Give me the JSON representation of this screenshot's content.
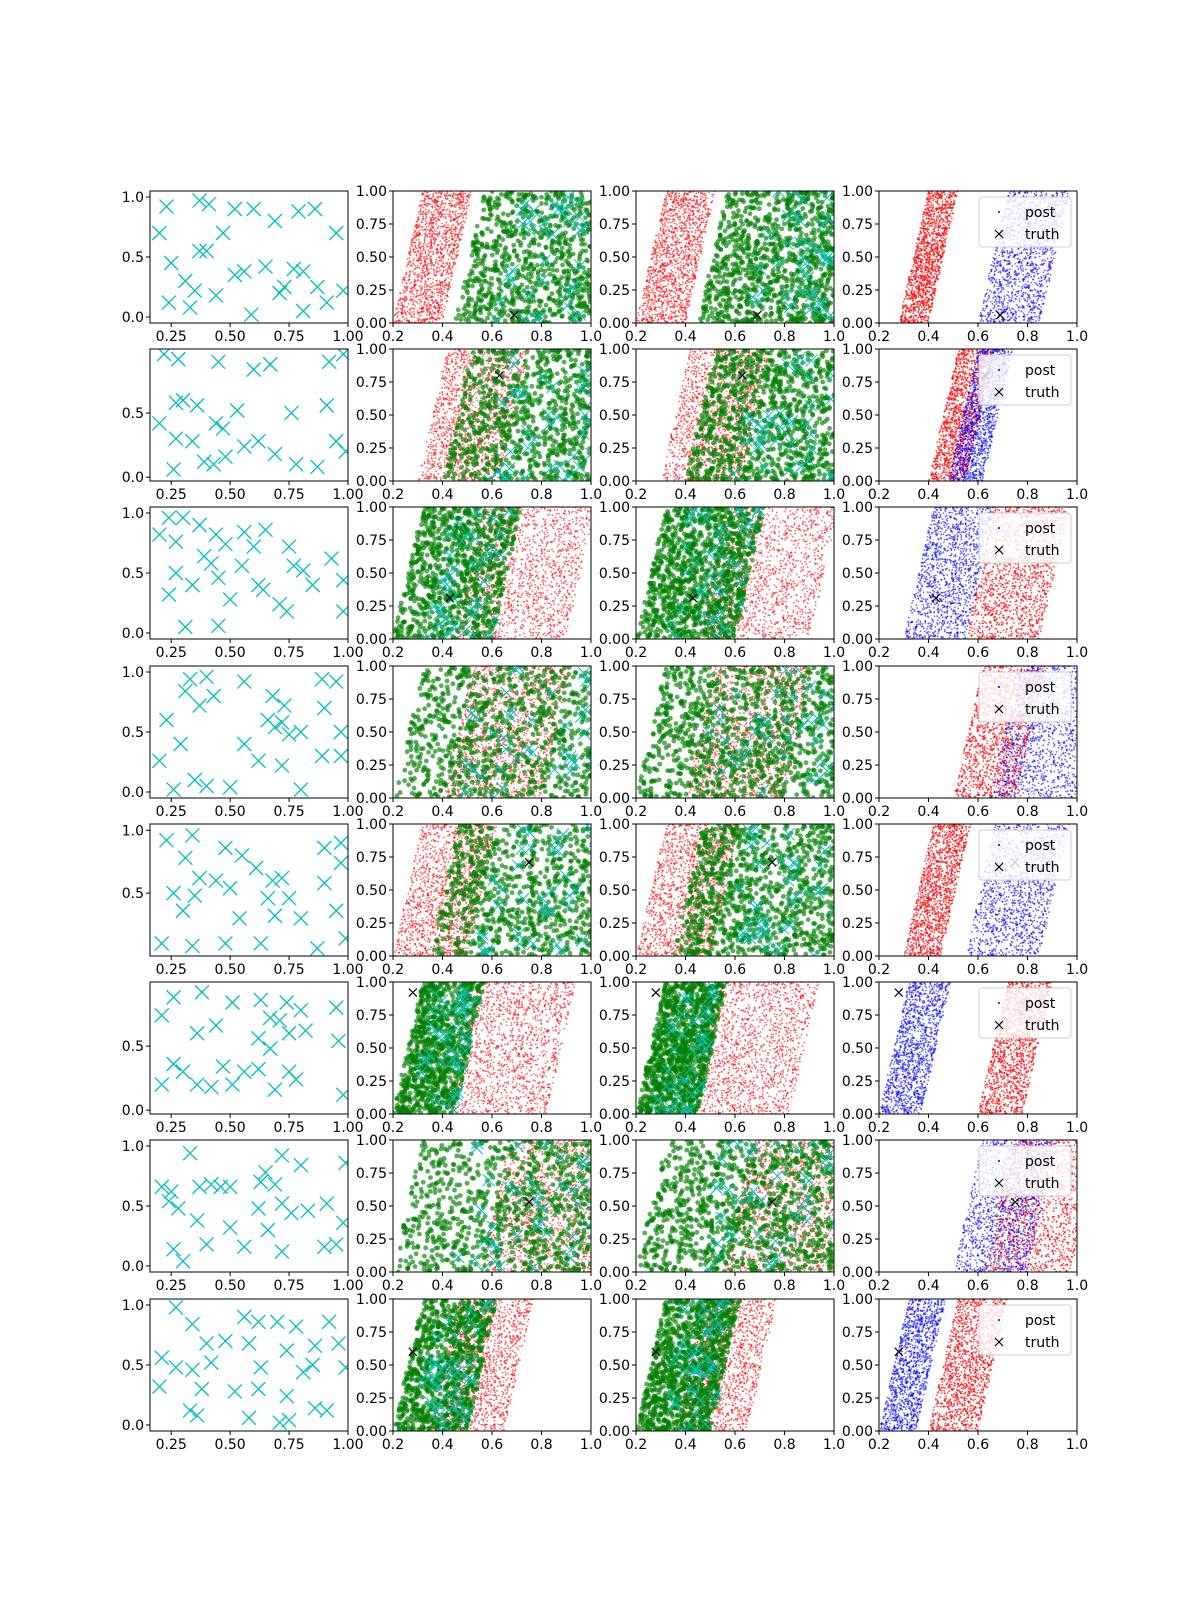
{
  "figure": {
    "title": ""
  },
  "colors": {
    "uniform_marker": "#00bfbf",
    "truth_marker": "#000000",
    "prior_cloud": "#ff0000",
    "green_samples": "#008000",
    "post_samples": "#0000ff",
    "axes": "#000000"
  },
  "legend": {
    "post_label": "post",
    "truth_label": "truth"
  },
  "chart_data": {
    "type": "scatter",
    "layout": "8 rows x 4 columns grid of scatter panels",
    "column_kinds": [
      "cyan-x-scatter",
      "red-and-green-clouds-with-cyan-x",
      "red-and-green-clouds-with-cyan-x",
      "red-and-blue-clouds-with-legend"
    ],
    "column_x_ticks": [
      [
        "0.25",
        "0.50",
        "0.75",
        "1.00"
      ],
      [
        "0.2",
        "0.4",
        "0.6",
        "0.8",
        "1.0"
      ],
      [
        "0.2",
        "0.4",
        "0.6",
        "0.8",
        "1.0"
      ],
      [
        "0.2",
        "0.4",
        "0.6",
        "0.8",
        "1.0"
      ]
    ],
    "column_x_ranges": [
      [
        0.16,
        1.0
      ],
      [
        0.2,
        1.0
      ],
      [
        0.2,
        1.0
      ],
      [
        0.2,
        1.0
      ]
    ],
    "column_y_ticks_other": [
      "0.00",
      "0.25",
      "0.50",
      "0.75",
      "1.00"
    ],
    "rows": [
      {
        "y_ticks_col1": [
          "0.0",
          "0.5",
          "1.0"
        ],
        "col1_yrange": [
          -0.05,
          1.05
        ],
        "truth": [
          0.69,
          0.06
        ],
        "green_band": [
          0.45,
          1.0
        ],
        "red_band": [
          0.2,
          0.4
        ],
        "blue_band": [
          0.6,
          0.85
        ],
        "red_band_col4": [
          0.28,
          0.4
        ],
        "cyan_x": [
          [
            0.23,
            0.92
          ],
          [
            0.37,
            0.97
          ],
          [
            0.41,
            0.94
          ],
          [
            0.52,
            0.9
          ],
          [
            0.6,
            0.9
          ],
          [
            0.79,
            0.88
          ],
          [
            0.86,
            0.9
          ],
          [
            0.2,
            0.7
          ],
          [
            0.47,
            0.7
          ],
          [
            0.69,
            0.8
          ],
          [
            0.95,
            0.7
          ],
          [
            0.4,
            0.55
          ],
          [
            0.37,
            0.55
          ],
          [
            0.65,
            0.42
          ],
          [
            0.77,
            0.4
          ],
          [
            0.81,
            0.38
          ],
          [
            0.25,
            0.45
          ],
          [
            0.52,
            0.35
          ],
          [
            0.56,
            0.38
          ],
          [
            0.31,
            0.3
          ],
          [
            0.35,
            0.22
          ],
          [
            0.44,
            0.18
          ],
          [
            0.71,
            0.2
          ],
          [
            0.73,
            0.25
          ],
          [
            0.87,
            0.25
          ],
          [
            0.24,
            0.12
          ],
          [
            0.33,
            0.08
          ],
          [
            0.59,
            0.02
          ],
          [
            0.81,
            0.05
          ],
          [
            0.91,
            0.12
          ],
          [
            0.98,
            0.22
          ]
        ]
      },
      {
        "y_ticks_col1": [
          "0.0",
          "0.5"
        ],
        "col1_yrange": [
          -0.03,
          1.0
        ],
        "truth": [
          0.63,
          0.8
        ],
        "green_band": [
          0.4,
          1.0
        ],
        "red_band": [
          0.3,
          0.63
        ],
        "blue_band": [
          0.48,
          0.62
        ],
        "red_band_col4": [
          0.4,
          0.55
        ],
        "cyan_x": [
          [
            0.22,
            0.96
          ],
          [
            0.28,
            0.92
          ],
          [
            0.45,
            0.9
          ],
          [
            0.6,
            0.84
          ],
          [
            0.67,
            0.88
          ],
          [
            0.92,
            0.9
          ],
          [
            0.98,
            0.96
          ],
          [
            0.3,
            0.6
          ],
          [
            0.36,
            0.56
          ],
          [
            0.27,
            0.58
          ],
          [
            0.53,
            0.52
          ],
          [
            0.76,
            0.5
          ],
          [
            0.91,
            0.56
          ],
          [
            0.2,
            0.42
          ],
          [
            0.44,
            0.42
          ],
          [
            0.47,
            0.38
          ],
          [
            0.56,
            0.24
          ],
          [
            0.62,
            0.28
          ],
          [
            0.34,
            0.28
          ],
          [
            0.27,
            0.3
          ],
          [
            0.48,
            0.16
          ],
          [
            0.39,
            0.12
          ],
          [
            0.43,
            0.1
          ],
          [
            0.69,
            0.18
          ],
          [
            0.78,
            0.1
          ],
          [
            0.95,
            0.28
          ],
          [
            0.99,
            0.2
          ],
          [
            0.87,
            0.08
          ],
          [
            0.26,
            0.06
          ]
        ]
      },
      {
        "y_ticks_col1": [
          "0.0",
          "0.5",
          "1.0"
        ],
        "col1_yrange": [
          -0.05,
          1.05
        ],
        "truth": [
          0.43,
          0.31
        ],
        "green_band": [
          0.2,
          0.6
        ],
        "red_band": [
          0.45,
          0.9
        ],
        "blue_band": [
          0.3,
          0.55
        ],
        "red_band_col4": [
          0.55,
          0.85
        ],
        "cyan_x": [
          [
            0.24,
            0.96
          ],
          [
            0.3,
            0.96
          ],
          [
            0.37,
            0.9
          ],
          [
            0.44,
            0.82
          ],
          [
            0.56,
            0.84
          ],
          [
            0.65,
            0.86
          ],
          [
            0.2,
            0.82
          ],
          [
            0.27,
            0.76
          ],
          [
            0.48,
            0.74
          ],
          [
            0.6,
            0.72
          ],
          [
            0.75,
            0.72
          ],
          [
            0.93,
            0.62
          ],
          [
            0.39,
            0.64
          ],
          [
            0.42,
            0.58
          ],
          [
            0.55,
            0.56
          ],
          [
            0.77,
            0.56
          ],
          [
            0.81,
            0.52
          ],
          [
            0.27,
            0.5
          ],
          [
            0.34,
            0.4
          ],
          [
            0.45,
            0.46
          ],
          [
            0.62,
            0.4
          ],
          [
            0.64,
            0.36
          ],
          [
            0.85,
            0.4
          ],
          [
            0.98,
            0.44
          ],
          [
            0.24,
            0.32
          ],
          [
            0.5,
            0.28
          ],
          [
            0.71,
            0.24
          ],
          [
            0.74,
            0.18
          ],
          [
            0.98,
            0.18
          ],
          [
            0.31,
            0.05
          ],
          [
            0.45,
            0.06
          ]
        ]
      },
      {
        "y_ticks_col1": [
          "0.0",
          "0.5",
          "1.0"
        ],
        "col1_yrange": [
          -0.05,
          1.05
        ],
        "truth": null,
        "green_band": [
          0.2,
          1.0
        ],
        "red_band": [
          0.4,
          0.8
        ],
        "blue_band": [
          0.65,
          1.0
        ],
        "red_band_col4": [
          0.5,
          0.75
        ],
        "cyan_x": [
          [
            0.33,
            0.94
          ],
          [
            0.4,
            0.96
          ],
          [
            0.56,
            0.92
          ],
          [
            0.89,
            0.94
          ],
          [
            0.95,
            0.92
          ],
          [
            0.31,
            0.84
          ],
          [
            0.43,
            0.8
          ],
          [
            0.37,
            0.72
          ],
          [
            0.68,
            0.8
          ],
          [
            0.73,
            0.72
          ],
          [
            0.9,
            0.7
          ],
          [
            0.23,
            0.6
          ],
          [
            0.72,
            0.58
          ],
          [
            0.75,
            0.48
          ],
          [
            0.8,
            0.5
          ],
          [
            0.66,
            0.6
          ],
          [
            0.69,
            0.54
          ],
          [
            0.29,
            0.4
          ],
          [
            0.56,
            0.4
          ],
          [
            0.97,
            0.5
          ],
          [
            0.89,
            0.3
          ],
          [
            0.97,
            0.3
          ],
          [
            0.2,
            0.26
          ],
          [
            0.62,
            0.26
          ],
          [
            0.72,
            0.22
          ],
          [
            0.35,
            0.1
          ],
          [
            0.4,
            0.05
          ],
          [
            0.26,
            0.02
          ],
          [
            0.5,
            0.04
          ],
          [
            0.8,
            0.02
          ]
        ]
      },
      {
        "y_ticks_col1": [
          "0.5",
          "1.0"
        ],
        "col1_yrange": [
          0.0,
          1.05
        ],
        "truth": [
          0.75,
          0.71
        ],
        "green_band": [
          0.35,
          1.0
        ],
        "red_band": [
          0.2,
          0.5
        ],
        "blue_band": [
          0.55,
          0.85
        ],
        "red_band_col4": [
          0.3,
          0.45
        ],
        "cyan_x": [
          [
            0.23,
            0.92
          ],
          [
            0.34,
            0.96
          ],
          [
            0.48,
            0.86
          ],
          [
            0.9,
            0.86
          ],
          [
            0.97,
            0.9
          ],
          [
            0.31,
            0.78
          ],
          [
            0.55,
            0.8
          ],
          [
            0.61,
            0.7
          ],
          [
            0.97,
            0.74
          ],
          [
            0.37,
            0.62
          ],
          [
            0.44,
            0.6
          ],
          [
            0.68,
            0.6
          ],
          [
            0.72,
            0.62
          ],
          [
            0.9,
            0.58
          ],
          [
            0.26,
            0.5
          ],
          [
            0.35,
            0.48
          ],
          [
            0.5,
            0.54
          ],
          [
            0.66,
            0.46
          ],
          [
            0.75,
            0.46
          ],
          [
            0.3,
            0.36
          ],
          [
            0.54,
            0.3
          ],
          [
            0.69,
            0.32
          ],
          [
            0.8,
            0.3
          ],
          [
            0.95,
            0.36
          ],
          [
            0.21,
            0.1
          ],
          [
            0.34,
            0.08
          ],
          [
            0.48,
            0.1
          ],
          [
            0.63,
            0.1
          ],
          [
            0.87,
            0.06
          ],
          [
            0.99,
            0.14
          ]
        ]
      },
      {
        "y_ticks_col1": [
          "0.0",
          "0.5"
        ],
        "col1_yrange": [
          -0.03,
          1.0
        ],
        "truth": [
          0.28,
          0.92
        ],
        "green_band": [
          0.2,
          0.45
        ],
        "red_band": [
          0.42,
          0.82
        ],
        "blue_band": [
          0.2,
          0.37
        ],
        "red_band_col4": [
          0.6,
          0.78
        ],
        "cyan_x": [
          [
            0.26,
            0.88
          ],
          [
            0.38,
            0.92
          ],
          [
            0.51,
            0.84
          ],
          [
            0.63,
            0.86
          ],
          [
            0.74,
            0.84
          ],
          [
            0.8,
            0.78
          ],
          [
            0.95,
            0.8
          ],
          [
            0.21,
            0.74
          ],
          [
            0.67,
            0.72
          ],
          [
            0.71,
            0.7
          ],
          [
            0.75,
            0.6
          ],
          [
            0.82,
            0.62
          ],
          [
            0.36,
            0.6
          ],
          [
            0.44,
            0.66
          ],
          [
            0.62,
            0.56
          ],
          [
            0.67,
            0.48
          ],
          [
            0.96,
            0.54
          ],
          [
            0.26,
            0.36
          ],
          [
            0.3,
            0.3
          ],
          [
            0.47,
            0.34
          ],
          [
            0.56,
            0.3
          ],
          [
            0.62,
            0.32
          ],
          [
            0.75,
            0.3
          ],
          [
            0.78,
            0.24
          ],
          [
            0.21,
            0.2
          ],
          [
            0.36,
            0.2
          ],
          [
            0.42,
            0.18
          ],
          [
            0.51,
            0.2
          ],
          [
            0.69,
            0.16
          ],
          [
            0.98,
            0.12
          ]
        ]
      },
      {
        "y_ticks_col1": [
          "0.0",
          "0.5",
          "1.0"
        ],
        "col1_yrange": [
          -0.05,
          1.05
        ],
        "truth": [
          0.75,
          0.53
        ],
        "green_band": [
          0.2,
          1.0
        ],
        "red_band": [
          0.55,
          1.0
        ],
        "blue_band": [
          0.5,
          0.8
        ],
        "red_band_col4": [
          0.62,
          0.98
        ],
        "cyan_x": [
          [
            0.33,
            0.94
          ],
          [
            0.72,
            0.92
          ],
          [
            0.8,
            0.84
          ],
          [
            0.99,
            0.86
          ],
          [
            0.65,
            0.78
          ],
          [
            0.21,
            0.66
          ],
          [
            0.25,
            0.62
          ],
          [
            0.37,
            0.66
          ],
          [
            0.42,
            0.68
          ],
          [
            0.46,
            0.66
          ],
          [
            0.5,
            0.66
          ],
          [
            0.63,
            0.7
          ],
          [
            0.69,
            0.68
          ],
          [
            0.24,
            0.54
          ],
          [
            0.28,
            0.48
          ],
          [
            0.62,
            0.48
          ],
          [
            0.72,
            0.52
          ],
          [
            0.76,
            0.44
          ],
          [
            0.83,
            0.46
          ],
          [
            0.91,
            0.52
          ],
          [
            0.36,
            0.38
          ],
          [
            0.5,
            0.32
          ],
          [
            0.66,
            0.3
          ],
          [
            0.98,
            0.36
          ],
          [
            0.26,
            0.14
          ],
          [
            0.4,
            0.18
          ],
          [
            0.56,
            0.16
          ],
          [
            0.72,
            0.12
          ],
          [
            0.9,
            0.16
          ],
          [
            0.95,
            0.18
          ],
          [
            0.3,
            0.04
          ]
        ]
      },
      {
        "y_ticks_col1": [
          "0.0",
          "0.5",
          "1.0"
        ],
        "col1_yrange": [
          -0.05,
          1.05
        ],
        "truth": [
          0.28,
          0.6
        ],
        "green_band": [
          0.2,
          0.5
        ],
        "red_band": [
          0.35,
          0.65
        ],
        "blue_band": [
          0.2,
          0.35
        ],
        "red_band_col4": [
          0.4,
          0.6
        ],
        "cyan_x": [
          [
            0.27,
            0.98
          ],
          [
            0.34,
            0.84
          ],
          [
            0.56,
            0.9
          ],
          [
            0.62,
            0.86
          ],
          [
            0.7,
            0.86
          ],
          [
            0.78,
            0.82
          ],
          [
            0.92,
            0.86
          ],
          [
            0.4,
            0.68
          ],
          [
            0.48,
            0.7
          ],
          [
            0.58,
            0.68
          ],
          [
            0.74,
            0.62
          ],
          [
            0.86,
            0.66
          ],
          [
            0.96,
            0.68
          ],
          [
            0.21,
            0.56
          ],
          [
            0.27,
            0.48
          ],
          [
            0.34,
            0.46
          ],
          [
            0.42,
            0.52
          ],
          [
            0.63,
            0.48
          ],
          [
            0.81,
            0.44
          ],
          [
            0.85,
            0.5
          ],
          [
            0.99,
            0.48
          ],
          [
            0.2,
            0.32
          ],
          [
            0.38,
            0.3
          ],
          [
            0.52,
            0.28
          ],
          [
            0.62,
            0.3
          ],
          [
            0.74,
            0.24
          ],
          [
            0.33,
            0.12
          ],
          [
            0.36,
            0.08
          ],
          [
            0.58,
            0.06
          ],
          [
            0.71,
            0.02
          ],
          [
            0.75,
            0.04
          ],
          [
            0.86,
            0.14
          ],
          [
            0.91,
            0.12
          ]
        ]
      }
    ]
  }
}
